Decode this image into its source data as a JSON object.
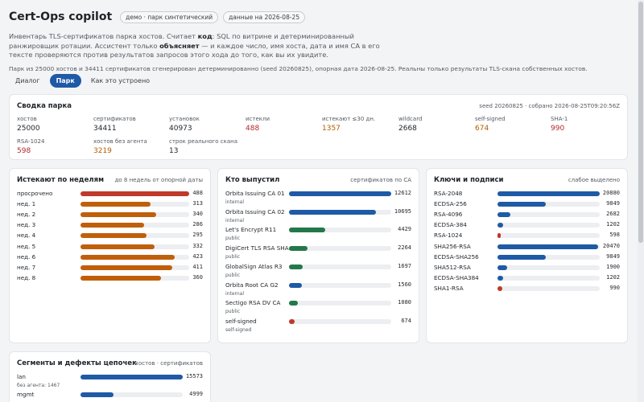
{
  "header": {
    "title": "Cert-Ops copilot",
    "badge_demo": "демо · парк синтетический",
    "badge_date": "данные на 2026-08-25",
    "intro_1": "Инвентарь TLS-сертификатов парка хостов. Считает ",
    "intro_code": "код",
    "intro_2": ": SQL по витрине и детерминированный ранжировщик ротации. Ассистент только ",
    "intro_explains": "объясняет",
    "intro_3": " — и каждое число, имя хоста, дата и имя CA в его тексте проверяются против результатов запросов этого хода до того, как вы их увидите.",
    "gen_note": "Парк из 25000 хостов и 34411 сертификатов сгенерирован детерминированно (seed 20260825), опорная дата 2026-08-25. Реальны только результаты TLS-скана собственных хостов."
  },
  "tabs": [
    {
      "label": "Диалог",
      "active": false
    },
    {
      "label": "Парк",
      "active": true
    },
    {
      "label": "Как это устроено",
      "active": false
    }
  ],
  "summary": {
    "title": "Сводка парка",
    "meta": "seed 20260825 · собрано 2026-08-25T09:20:56Z",
    "stats": [
      {
        "label": "хостов",
        "value": "25000",
        "tone": ""
      },
      {
        "label": "сертификатов",
        "value": "34411",
        "tone": ""
      },
      {
        "label": "установок",
        "value": "40973",
        "tone": ""
      },
      {
        "label": "истекли",
        "value": "488",
        "tone": "red"
      },
      {
        "label": "истекают ≤30 дн.",
        "value": "1357",
        "tone": "orange"
      },
      {
        "label": "wildcard",
        "value": "2668",
        "tone": ""
      },
      {
        "label": "self-signed",
        "value": "674",
        "tone": "orange"
      },
      {
        "label": "SHA-1",
        "value": "990",
        "tone": "red"
      },
      {
        "label": "RSA-1024",
        "value": "598",
        "tone": "red"
      },
      {
        "label": "хостов без агента",
        "value": "3219",
        "tone": "orange"
      },
      {
        "label": "строк реального скана",
        "value": "13",
        "tone": ""
      }
    ]
  },
  "colors": {
    "red": "#c0392b",
    "orange": "#c05f0a",
    "blue": "#1f5aa6",
    "green": "#23784a",
    "track": "#eceef1"
  },
  "expiry": {
    "title": "Истекают по неделям",
    "sub": "до 8 недель от опорной даты",
    "max": 488,
    "rows": [
      {
        "label": "просрочено",
        "value": 488,
        "color": "red"
      },
      {
        "label": "нед. 1",
        "value": 313,
        "color": "orange"
      },
      {
        "label": "нед. 2",
        "value": 340,
        "color": "orange"
      },
      {
        "label": "нед. 3",
        "value": 286,
        "color": "orange"
      },
      {
        "label": "нед. 4",
        "value": 295,
        "color": "orange"
      },
      {
        "label": "нед. 5",
        "value": 332,
        "color": "orange"
      },
      {
        "label": "нед. 6",
        "value": 423,
        "color": "orange"
      },
      {
        "label": "нед. 7",
        "value": 411,
        "color": "orange"
      },
      {
        "label": "нед. 8",
        "value": 360,
        "color": "orange"
      }
    ]
  },
  "issuers": {
    "title": "Кто выпустил",
    "sub": "сертификатов по CA",
    "max": 12612,
    "rows": [
      {
        "label": "Orbita Issuing CA 01",
        "sub": "internal",
        "value": 12612,
        "color": "blue"
      },
      {
        "label": "Orbita Issuing CA 02",
        "sub": "internal",
        "value": 10695,
        "color": "blue"
      },
      {
        "label": "Let's Encrypt R11",
        "sub": "public",
        "value": 4429,
        "color": "green"
      },
      {
        "label": "DigiCert TLS RSA SHA...",
        "sub": "public",
        "value": 2264,
        "color": "green"
      },
      {
        "label": "GlobalSign Atlas R3",
        "sub": "public",
        "value": 1697,
        "color": "green"
      },
      {
        "label": "Orbita Root CA G2",
        "sub": "internal",
        "value": 1560,
        "color": "blue"
      },
      {
        "label": "Sectigo RSA DV CA",
        "sub": "public",
        "value": 1080,
        "color": "green"
      },
      {
        "label": "self-signed",
        "sub": "self-signed",
        "value": 674,
        "color": "red"
      }
    ]
  },
  "keys": {
    "title": "Ключи и подписи",
    "sub": "слабое выделено",
    "max": 20880,
    "rows": [
      {
        "label": "RSA-2048",
        "value": 20880,
        "color": "blue"
      },
      {
        "label": "ECDSA-256",
        "value": 9849,
        "color": "blue"
      },
      {
        "label": "RSA-4096",
        "value": 2682,
        "color": "blue"
      },
      {
        "label": "ECDSA-384",
        "value": 1202,
        "color": "blue"
      },
      {
        "label": "RSA-1024",
        "value": 598,
        "color": "red"
      },
      {
        "label": "SHA256-RSA",
        "value": 20470,
        "color": "blue"
      },
      {
        "label": "ECDSA-SHA256",
        "value": 9849,
        "color": "blue"
      },
      {
        "label": "SHA512-RSA",
        "value": 1900,
        "color": "blue"
      },
      {
        "label": "ECDSA-SHA384",
        "value": 1202,
        "color": "blue"
      },
      {
        "label": "SHA1-RSA",
        "value": 990,
        "color": "red"
      }
    ]
  },
  "segments": {
    "title": "Сегменты и дефекты цепочек",
    "sub": "хостов · сертификатов",
    "max": 15573,
    "rows": [
      {
        "label": "lan",
        "sub": "без агента: 1467",
        "value": 15573,
        "color": "blue"
      },
      {
        "label": "mgmt",
        "sub": "",
        "value": 4999,
        "color": "blue"
      }
    ]
  }
}
